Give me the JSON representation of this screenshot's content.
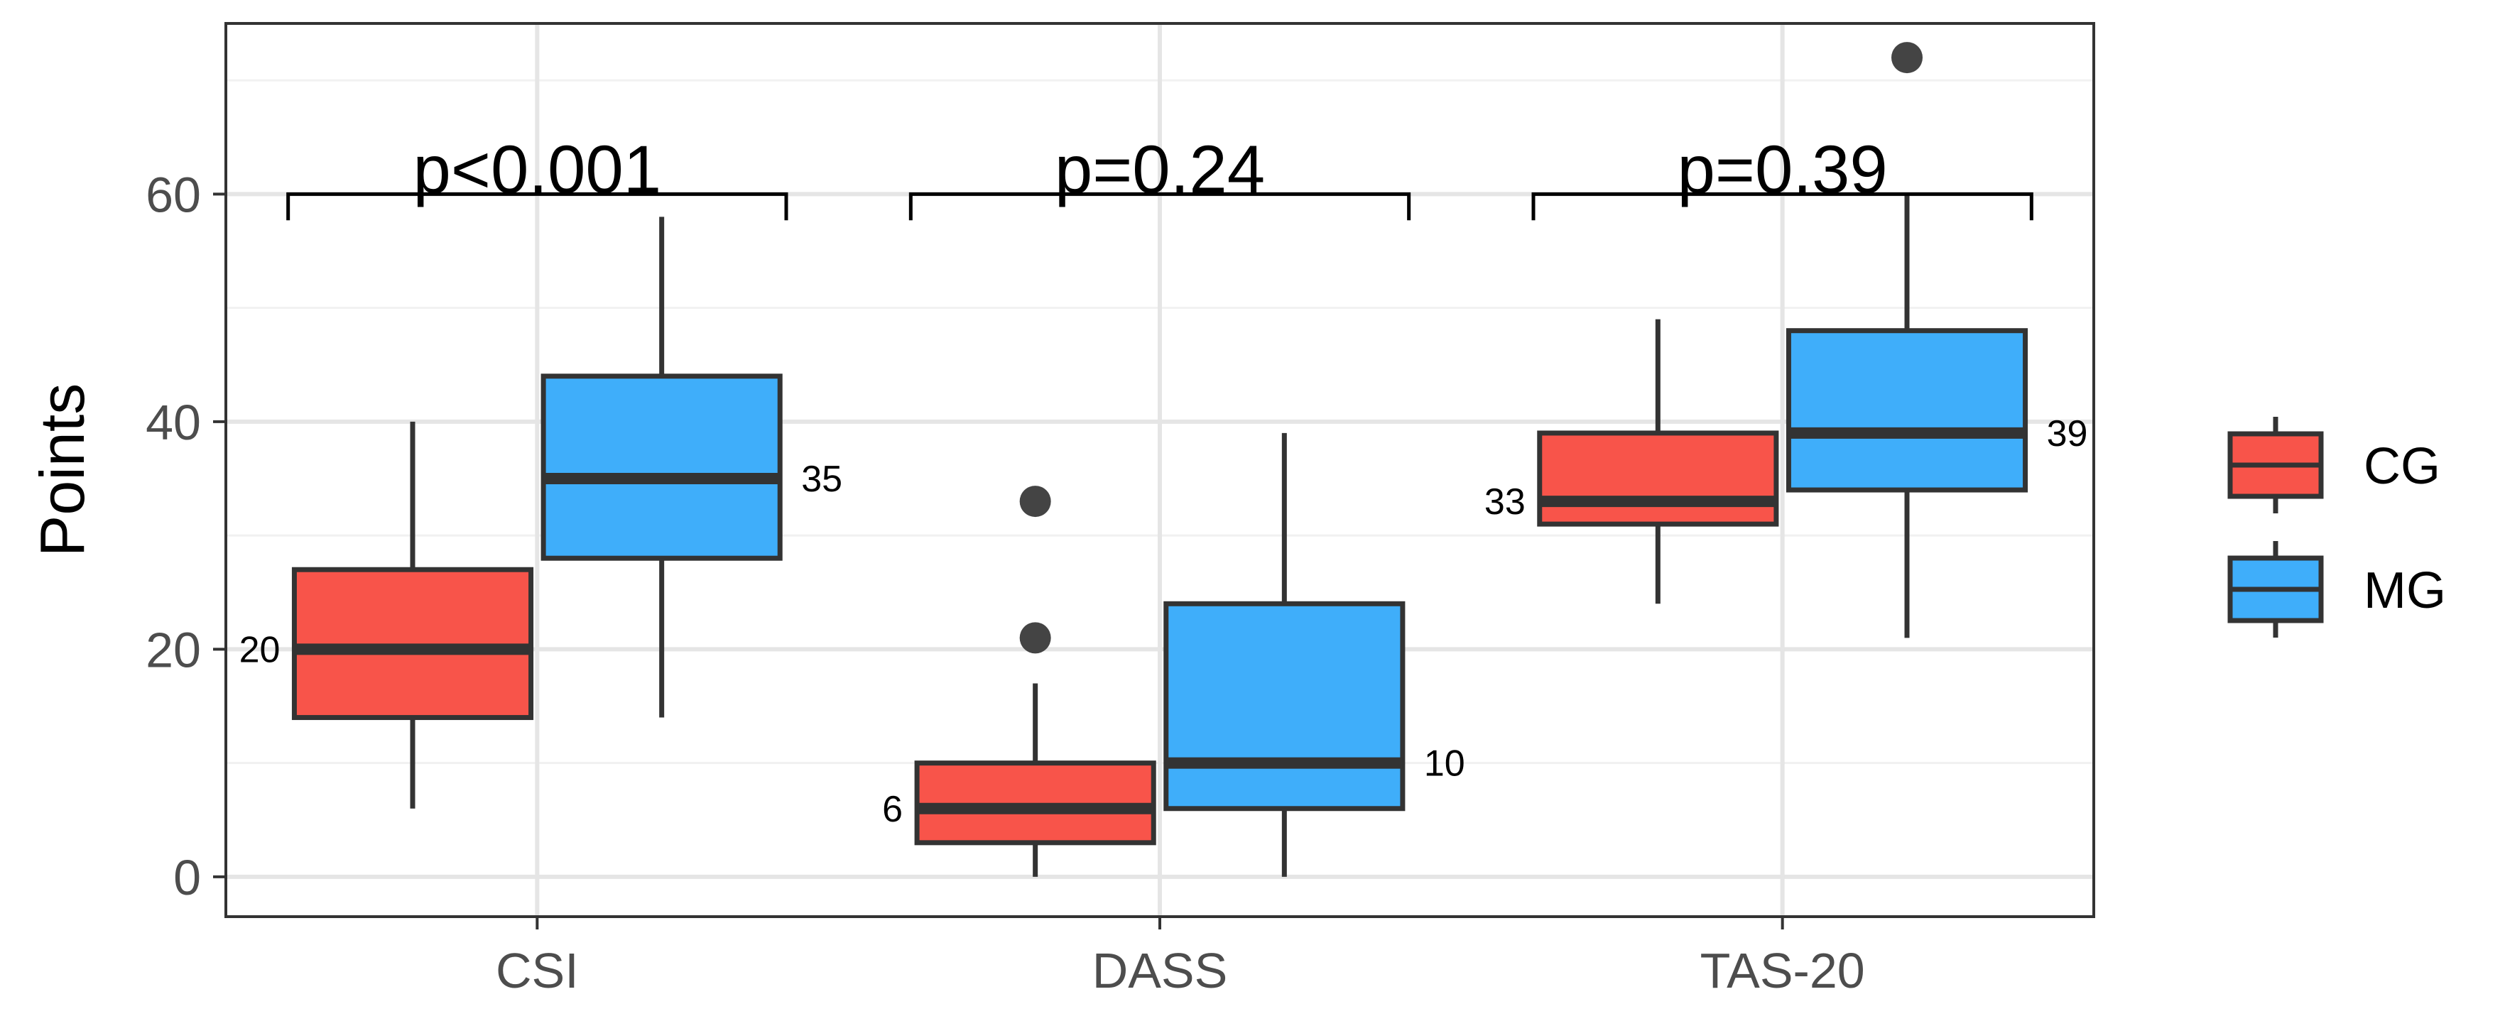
{
  "chart_data": {
    "type": "boxplot",
    "ylabel": "Points",
    "xlabel": "",
    "ylim": [
      -3.5,
      75
    ],
    "yticks": [
      0,
      20,
      40,
      60
    ],
    "categories": [
      "CSI",
      "DASS",
      "TAS-20"
    ],
    "series": [
      {
        "name": "CG",
        "color": "#f8544a"
      },
      {
        "name": "MG",
        "color": "#3faefa"
      }
    ],
    "boxes": [
      {
        "category": "CSI",
        "group": "CG",
        "whisker_low": 6,
        "q1": 14,
        "median": 20,
        "q3": 27,
        "whisker_high": 40,
        "outliers": [],
        "label": "20"
      },
      {
        "category": "CSI",
        "group": "MG",
        "whisker_low": 14,
        "q1": 28,
        "median": 35,
        "q3": 44,
        "whisker_high": 58,
        "outliers": [],
        "label": "35"
      },
      {
        "category": "DASS",
        "group": "CG",
        "whisker_low": 0,
        "q1": 3,
        "median": 6,
        "q3": 10,
        "whisker_high": 17,
        "outliers": [
          21,
          33
        ],
        "label": "6"
      },
      {
        "category": "DASS",
        "group": "MG",
        "whisker_low": 0,
        "q1": 6,
        "median": 10,
        "q3": 24,
        "whisker_high": 39,
        "outliers": [],
        "label": "10"
      },
      {
        "category": "TAS-20",
        "group": "CG",
        "whisker_low": 24,
        "q1": 31,
        "median": 33,
        "q3": 39,
        "whisker_high": 49,
        "outliers": [],
        "label": "33"
      },
      {
        "category": "TAS-20",
        "group": "MG",
        "whisker_low": 21,
        "q1": 34,
        "median": 39,
        "q3": 48,
        "whisker_high": 60,
        "outliers": [
          72
        ],
        "label": "39"
      }
    ],
    "comparisons": [
      {
        "category": "CSI",
        "label": "p<0.001",
        "bracket_y": 60
      },
      {
        "category": "DASS",
        "label": "p=0.24",
        "bracket_y": 60
      },
      {
        "category": "TAS-20",
        "label": "p=0.39",
        "bracket_y": 60
      }
    ],
    "legend": {
      "position": "right",
      "entries": [
        "CG",
        "MG"
      ]
    },
    "grid": true
  }
}
